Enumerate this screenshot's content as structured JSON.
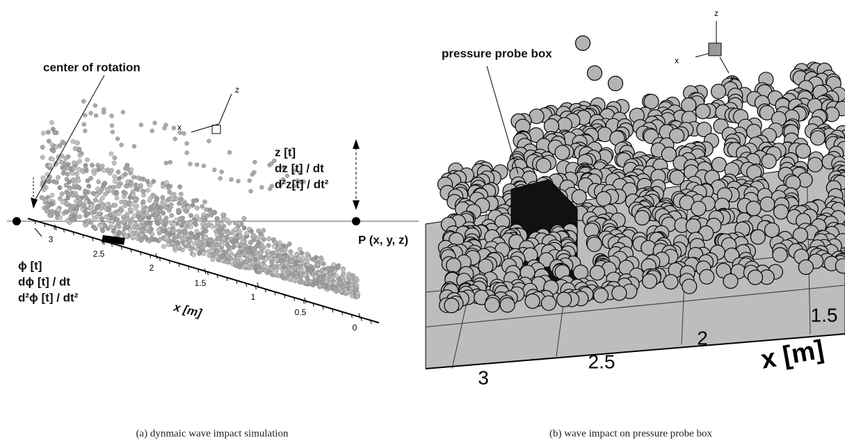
{
  "panel_a": {
    "annotation_center": "center of rotation",
    "triad": {
      "z": "z",
      "x": "x"
    },
    "heave": [
      "z [t]",
      "dz [t] / dt",
      "d²z[t] / dt²"
    ],
    "point": "P (x, y, z)",
    "roll": [
      "ϕ [t]",
      "dϕ [t] / dt",
      "d²ϕ [t] / dt²"
    ],
    "ticks": [
      "3",
      "2.5",
      "2",
      "1.5",
      "1",
      "0.5",
      "0"
    ],
    "axis_label": "x [m]",
    "caption": "(a)  dynmaic wave impact simulation"
  },
  "panel_b": {
    "triad": {
      "z": "z",
      "x": "x",
      "y": "y"
    },
    "annotation_probe": "pressure probe box",
    "ticks": [
      "3",
      "2.5",
      "2",
      "1.5"
    ],
    "axis_label": "x [m]",
    "caption": "(b)  wave impact on pressure probe box"
  }
}
